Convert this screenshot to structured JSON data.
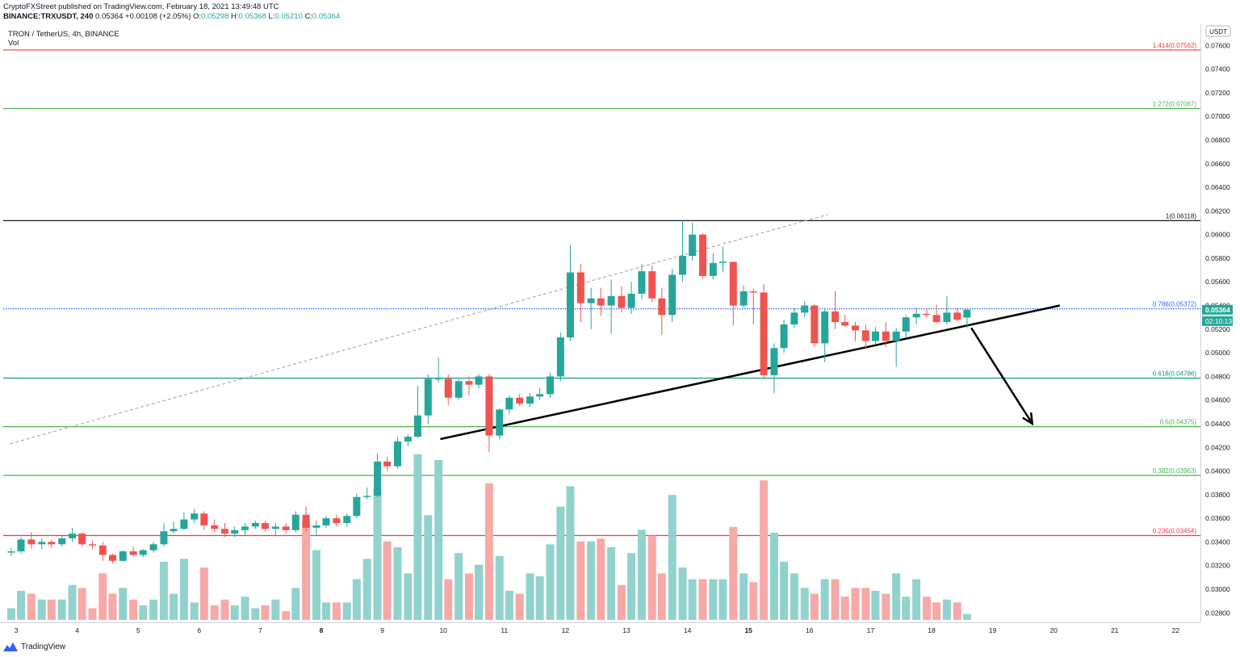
{
  "header": {
    "publisher_line": "CryptoFXStreet published on TradingView.com, February 18, 2021 13:49:48 UTC",
    "symbol": "BINANCE:TRXUSDT, 240",
    "last": "0.05364",
    "change": "+0.00108 (+2.05%)",
    "open_label": "O:",
    "open": "0.05298",
    "high_label": "H:",
    "high": "0.05368",
    "low_label": "L:",
    "low": "0.05210",
    "close_label": "C:",
    "close": "0.05364"
  },
  "legend": {
    "title": "TRON / TetherUS, 4h, BINANCE",
    "indicator": "Vol"
  },
  "footer": {
    "brand": "TradingView"
  },
  "colors": {
    "up": "#26a69a",
    "down": "#ef5350",
    "vol_up": "#92d2cc",
    "vol_down": "#f7a9a7",
    "fib_red": "#f23645",
    "fib_green": "#4caf50",
    "fib_teal": "#089981",
    "fib_black": "#131722",
    "fib_blue": "#2962ff",
    "axis_text": "#131722"
  },
  "chart_data": {
    "type": "candlestick",
    "currency_label": "USDT",
    "ylim": [
      0.0272,
      0.0778
    ],
    "yticks": [
      "0.07600",
      "0.07400",
      "0.07200",
      "0.07000",
      "0.06800",
      "0.06600",
      "0.06400",
      "0.06200",
      "0.06000",
      "0.05800",
      "0.05600",
      "0.05400",
      "0.05200",
      "0.05000",
      "0.04800",
      "0.04600",
      "0.04400",
      "0.04200",
      "0.04000",
      "0.03800",
      "0.03600",
      "0.03400",
      "0.03200",
      "0.03000",
      "0.02800"
    ],
    "x_day_labels": [
      {
        "label": "3",
        "day": 3
      },
      {
        "label": "4",
        "day": 4
      },
      {
        "label": "5",
        "day": 5
      },
      {
        "label": "6",
        "day": 6
      },
      {
        "label": "7",
        "day": 7
      },
      {
        "label": "8",
        "day": 8
      },
      {
        "label": "9",
        "day": 9
      },
      {
        "label": "10",
        "day": 10
      },
      {
        "label": "11",
        "day": 11
      },
      {
        "label": "12",
        "day": 12
      },
      {
        "label": "13",
        "day": 13
      },
      {
        "label": "14",
        "day": 14
      },
      {
        "label": "15",
        "day": 15
      },
      {
        "label": "16",
        "day": 16
      },
      {
        "label": "17",
        "day": 17
      },
      {
        "label": "18",
        "day": 18
      },
      {
        "label": "19",
        "day": 19
      },
      {
        "label": "20",
        "day": 20
      },
      {
        "label": "21",
        "day": 21
      },
      {
        "label": "22",
        "day": 22
      }
    ],
    "bold_days": [
      8,
      15
    ],
    "fib_levels": [
      {
        "label": "1.414(0.07562)",
        "price": 0.07562,
        "color": "fib_red"
      },
      {
        "label": "1.272(0.07067)",
        "price": 0.07067,
        "color": "fib_green"
      },
      {
        "label": "1(0.06118)",
        "price": 0.06118,
        "color": "fib_black"
      },
      {
        "label": "0.786(0.05372)",
        "price": 0.05372,
        "color": "fib_blue",
        "dotted": true
      },
      {
        "label": "0.618(0.04786)",
        "price": 0.04786,
        "color": "fib_teal"
      },
      {
        "label": "0.5(0.04375)",
        "price": 0.04375,
        "color": "fib_green"
      },
      {
        "label": "0.382(0.03963)",
        "price": 0.03963,
        "color": "fib_green"
      },
      {
        "label": "0.236(0.03454)",
        "price": 0.03454,
        "color": "fib_red"
      }
    ],
    "last_price_label": "0.05364",
    "last_price": 0.05364,
    "countdown_label": "02:10:13",
    "trendlines": [
      {
        "kind": "dashed",
        "from": {
          "day": 2.9,
          "price": 0.0423
        },
        "to": {
          "day": 16.3,
          "price": 0.0617
        }
      },
      {
        "kind": "solid",
        "from": {
          "day": 9.95,
          "price": 0.0427
        },
        "to": {
          "day": 20.1,
          "price": 0.054
        }
      }
    ],
    "arrow": {
      "from": {
        "day": 18.65,
        "price": 0.0521
      },
      "to": {
        "day": 19.65,
        "price": 0.044
      }
    },
    "candles": [
      {
        "day": 2.92,
        "o": 0.0331,
        "h": 0.0335,
        "l": 0.0328,
        "c": 0.0332,
        "v": 0.4
      },
      {
        "day": 3.08,
        "o": 0.0332,
        "h": 0.0344,
        "l": 0.033,
        "c": 0.0342,
        "v": 1.0
      },
      {
        "day": 3.25,
        "o": 0.0342,
        "h": 0.0348,
        "l": 0.0334,
        "c": 0.0338,
        "v": 0.9
      },
      {
        "day": 3.42,
        "o": 0.0338,
        "h": 0.0343,
        "l": 0.0334,
        "c": 0.034,
        "v": 0.7
      },
      {
        "day": 3.58,
        "o": 0.034,
        "h": 0.0342,
        "l": 0.0335,
        "c": 0.0338,
        "v": 0.7
      },
      {
        "day": 3.75,
        "o": 0.0338,
        "h": 0.0345,
        "l": 0.0336,
        "c": 0.0343,
        "v": 0.7
      },
      {
        "day": 3.92,
        "o": 0.0343,
        "h": 0.0352,
        "l": 0.034,
        "c": 0.0347,
        "v": 1.2
      },
      {
        "day": 4.08,
        "o": 0.0347,
        "h": 0.0348,
        "l": 0.0336,
        "c": 0.0338,
        "v": 1.1
      },
      {
        "day": 4.25,
        "o": 0.0338,
        "h": 0.0341,
        "l": 0.0334,
        "c": 0.0337,
        "v": 0.4
      },
      {
        "day": 4.42,
        "o": 0.0337,
        "h": 0.034,
        "l": 0.0324,
        "c": 0.0329,
        "v": 1.6
      },
      {
        "day": 4.58,
        "o": 0.0329,
        "h": 0.033,
        "l": 0.0322,
        "c": 0.0324,
        "v": 0.9
      },
      {
        "day": 4.75,
        "o": 0.0324,
        "h": 0.0333,
        "l": 0.0323,
        "c": 0.0332,
        "v": 1.1
      },
      {
        "day": 4.92,
        "o": 0.0332,
        "h": 0.0336,
        "l": 0.0328,
        "c": 0.0329,
        "v": 0.7
      },
      {
        "day": 5.08,
        "o": 0.0329,
        "h": 0.0334,
        "l": 0.0327,
        "c": 0.0333,
        "v": 0.5
      },
      {
        "day": 5.25,
        "o": 0.0333,
        "h": 0.034,
        "l": 0.0331,
        "c": 0.0338,
        "v": 0.7
      },
      {
        "day": 5.42,
        "o": 0.0338,
        "h": 0.0356,
        "l": 0.0336,
        "c": 0.0349,
        "v": 2.0
      },
      {
        "day": 5.58,
        "o": 0.0349,
        "h": 0.0357,
        "l": 0.0347,
        "c": 0.0351,
        "v": 0.9
      },
      {
        "day": 5.75,
        "o": 0.0351,
        "h": 0.0365,
        "l": 0.035,
        "c": 0.0359,
        "v": 2.1
      },
      {
        "day": 5.92,
        "o": 0.0359,
        "h": 0.0368,
        "l": 0.0356,
        "c": 0.0364,
        "v": 0.6
      },
      {
        "day": 6.08,
        "o": 0.0364,
        "h": 0.0366,
        "l": 0.035,
        "c": 0.0354,
        "v": 1.8
      },
      {
        "day": 6.25,
        "o": 0.0354,
        "h": 0.0359,
        "l": 0.0348,
        "c": 0.0351,
        "v": 0.5
      },
      {
        "day": 6.42,
        "o": 0.0351,
        "h": 0.0356,
        "l": 0.0344,
        "c": 0.0347,
        "v": 0.7
      },
      {
        "day": 6.58,
        "o": 0.0347,
        "h": 0.0353,
        "l": 0.0344,
        "c": 0.035,
        "v": 0.5
      },
      {
        "day": 6.75,
        "o": 0.035,
        "h": 0.0356,
        "l": 0.0346,
        "c": 0.0353,
        "v": 0.8
      },
      {
        "day": 6.92,
        "o": 0.0353,
        "h": 0.0358,
        "l": 0.0351,
        "c": 0.0356,
        "v": 0.4
      },
      {
        "day": 7.08,
        "o": 0.0356,
        "h": 0.0358,
        "l": 0.0349,
        "c": 0.0351,
        "v": 0.5
      },
      {
        "day": 7.25,
        "o": 0.0351,
        "h": 0.0356,
        "l": 0.0345,
        "c": 0.0353,
        "v": 0.7
      },
      {
        "day": 7.42,
        "o": 0.0353,
        "h": 0.0356,
        "l": 0.0347,
        "c": 0.035,
        "v": 0.3
      },
      {
        "day": 7.58,
        "o": 0.035,
        "h": 0.0366,
        "l": 0.0348,
        "c": 0.0363,
        "v": 1.1
      },
      {
        "day": 7.75,
        "o": 0.0363,
        "h": 0.037,
        "l": 0.0349,
        "c": 0.0352,
        "v": 3.4
      },
      {
        "day": 7.92,
        "o": 0.0352,
        "h": 0.0358,
        "l": 0.0345,
        "c": 0.0354,
        "v": 2.4
      },
      {
        "day": 8.08,
        "o": 0.0354,
        "h": 0.0362,
        "l": 0.0352,
        "c": 0.036,
        "v": 0.6
      },
      {
        "day": 8.25,
        "o": 0.036,
        "h": 0.0363,
        "l": 0.0353,
        "c": 0.0356,
        "v": 0.6
      },
      {
        "day": 8.42,
        "o": 0.0356,
        "h": 0.0364,
        "l": 0.0353,
        "c": 0.0362,
        "v": 0.6
      },
      {
        "day": 8.58,
        "o": 0.0362,
        "h": 0.0381,
        "l": 0.036,
        "c": 0.0378,
        "v": 1.4
      },
      {
        "day": 8.75,
        "o": 0.0378,
        "h": 0.0386,
        "l": 0.0376,
        "c": 0.0379,
        "v": 2.1
      },
      {
        "day": 8.92,
        "o": 0.0379,
        "h": 0.0415,
        "l": 0.0378,
        "c": 0.0408,
        "v": 4.5
      },
      {
        "day": 9.08,
        "o": 0.0408,
        "h": 0.0412,
        "l": 0.04,
        "c": 0.0404,
        "v": 2.7
      },
      {
        "day": 9.25,
        "o": 0.0404,
        "h": 0.0429,
        "l": 0.0402,
        "c": 0.0425,
        "v": 2.5
      },
      {
        "day": 9.42,
        "o": 0.0425,
        "h": 0.0431,
        "l": 0.0421,
        "c": 0.0429,
        "v": 1.6
      },
      {
        "day": 9.58,
        "o": 0.0429,
        "h": 0.0472,
        "l": 0.0428,
        "c": 0.0447,
        "v": 5.7
      },
      {
        "day": 9.75,
        "o": 0.0447,
        "h": 0.0482,
        "l": 0.044,
        "c": 0.0478,
        "v": 3.6
      },
      {
        "day": 9.92,
        "o": 0.0478,
        "h": 0.0496,
        "l": 0.0475,
        "c": 0.0478,
        "v": 5.5
      },
      {
        "day": 10.08,
        "o": 0.0478,
        "h": 0.0482,
        "l": 0.0456,
        "c": 0.0462,
        "v": 1.4
      },
      {
        "day": 10.25,
        "o": 0.0462,
        "h": 0.0478,
        "l": 0.046,
        "c": 0.0476,
        "v": 2.3
      },
      {
        "day": 10.42,
        "o": 0.0476,
        "h": 0.048,
        "l": 0.0464,
        "c": 0.0473,
        "v": 1.6
      },
      {
        "day": 10.58,
        "o": 0.0473,
        "h": 0.0482,
        "l": 0.047,
        "c": 0.048,
        "v": 1.9
      },
      {
        "day": 10.75,
        "o": 0.048,
        "h": 0.0482,
        "l": 0.0416,
        "c": 0.043,
        "v": 4.7
      },
      {
        "day": 10.92,
        "o": 0.043,
        "h": 0.0453,
        "l": 0.0427,
        "c": 0.0452,
        "v": 2.2
      },
      {
        "day": 11.08,
        "o": 0.0452,
        "h": 0.0464,
        "l": 0.0448,
        "c": 0.0462,
        "v": 1.0
      },
      {
        "day": 11.25,
        "o": 0.0462,
        "h": 0.0465,
        "l": 0.0455,
        "c": 0.0457,
        "v": 0.9
      },
      {
        "day": 11.42,
        "o": 0.0457,
        "h": 0.0466,
        "l": 0.0454,
        "c": 0.0463,
        "v": 1.6
      },
      {
        "day": 11.58,
        "o": 0.0463,
        "h": 0.047,
        "l": 0.046,
        "c": 0.0465,
        "v": 1.5
      },
      {
        "day": 11.75,
        "o": 0.0465,
        "h": 0.0483,
        "l": 0.0462,
        "c": 0.048,
        "v": 2.6
      },
      {
        "day": 11.92,
        "o": 0.048,
        "h": 0.0517,
        "l": 0.0476,
        "c": 0.0513,
        "v": 3.9
      },
      {
        "day": 12.08,
        "o": 0.0513,
        "h": 0.0591,
        "l": 0.051,
        "c": 0.0568,
        "v": 4.6
      },
      {
        "day": 12.25,
        "o": 0.0568,
        "h": 0.0575,
        "l": 0.0526,
        "c": 0.0542,
        "v": 2.7
      },
      {
        "day": 12.42,
        "o": 0.0542,
        "h": 0.0555,
        "l": 0.052,
        "c": 0.0546,
        "v": 2.7
      },
      {
        "day": 12.58,
        "o": 0.0546,
        "h": 0.0555,
        "l": 0.0531,
        "c": 0.054,
        "v": 2.8
      },
      {
        "day": 12.75,
        "o": 0.054,
        "h": 0.0562,
        "l": 0.0516,
        "c": 0.0548,
        "v": 2.5
      },
      {
        "day": 12.92,
        "o": 0.0548,
        "h": 0.0556,
        "l": 0.0534,
        "c": 0.0538,
        "v": 1.2
      },
      {
        "day": 13.08,
        "o": 0.0538,
        "h": 0.056,
        "l": 0.0533,
        "c": 0.055,
        "v": 2.3
      },
      {
        "day": 13.25,
        "o": 0.055,
        "h": 0.0575,
        "l": 0.0545,
        "c": 0.0569,
        "v": 3.1
      },
      {
        "day": 13.42,
        "o": 0.0569,
        "h": 0.0574,
        "l": 0.0543,
        "c": 0.0546,
        "v": 2.9
      },
      {
        "day": 13.58,
        "o": 0.0546,
        "h": 0.0555,
        "l": 0.0515,
        "c": 0.0532,
        "v": 1.6
      },
      {
        "day": 13.75,
        "o": 0.0532,
        "h": 0.0571,
        "l": 0.0526,
        "c": 0.0566,
        "v": 4.3
      },
      {
        "day": 13.92,
        "o": 0.0566,
        "h": 0.0612,
        "l": 0.056,
        "c": 0.0582,
        "v": 1.8
      },
      {
        "day": 14.08,
        "o": 0.0582,
        "h": 0.061,
        "l": 0.0578,
        "c": 0.06,
        "v": 1.4
      },
      {
        "day": 14.25,
        "o": 0.06,
        "h": 0.0601,
        "l": 0.0563,
        "c": 0.0565,
        "v": 1.4
      },
      {
        "day": 14.42,
        "o": 0.0565,
        "h": 0.0584,
        "l": 0.0562,
        "c": 0.0576,
        "v": 1.4
      },
      {
        "day": 14.58,
        "o": 0.0576,
        "h": 0.059,
        "l": 0.0568,
        "c": 0.0577,
        "v": 1.4
      },
      {
        "day": 14.75,
        "o": 0.0577,
        "h": 0.0577,
        "l": 0.0523,
        "c": 0.054,
        "v": 3.2
      },
      {
        "day": 14.92,
        "o": 0.054,
        "h": 0.0557,
        "l": 0.0538,
        "c": 0.0552,
        "v": 1.6
      },
      {
        "day": 15.08,
        "o": 0.0552,
        "h": 0.0554,
        "l": 0.0524,
        "c": 0.0551,
        "v": 1.3
      },
      {
        "day": 15.25,
        "o": 0.0551,
        "h": 0.0558,
        "l": 0.0479,
        "c": 0.0481,
        "v": 4.8
      },
      {
        "day": 15.42,
        "o": 0.0481,
        "h": 0.0508,
        "l": 0.0466,
        "c": 0.0504,
        "v": 3.0
      },
      {
        "day": 15.58,
        "o": 0.0504,
        "h": 0.0528,
        "l": 0.05,
        "c": 0.0524,
        "v": 2.0
      },
      {
        "day": 15.75,
        "o": 0.0524,
        "h": 0.0538,
        "l": 0.0521,
        "c": 0.0534,
        "v": 1.6
      },
      {
        "day": 15.92,
        "o": 0.0534,
        "h": 0.0544,
        "l": 0.053,
        "c": 0.054,
        "v": 1.1
      },
      {
        "day": 16.08,
        "o": 0.054,
        "h": 0.0541,
        "l": 0.0505,
        "c": 0.0508,
        "v": 0.9
      },
      {
        "day": 16.25,
        "o": 0.0508,
        "h": 0.0538,
        "l": 0.0492,
        "c": 0.0535,
        "v": 1.4
      },
      {
        "day": 16.42,
        "o": 0.0535,
        "h": 0.0552,
        "l": 0.052,
        "c": 0.0526,
        "v": 1.4
      },
      {
        "day": 16.58,
        "o": 0.0526,
        "h": 0.0532,
        "l": 0.0522,
        "c": 0.0523,
        "v": 0.8
      },
      {
        "day": 16.75,
        "o": 0.0523,
        "h": 0.0526,
        "l": 0.051,
        "c": 0.0519,
        "v": 1.1
      },
      {
        "day": 16.92,
        "o": 0.0519,
        "h": 0.0524,
        "l": 0.0503,
        "c": 0.051,
        "v": 1.1
      },
      {
        "day": 17.08,
        "o": 0.051,
        "h": 0.0522,
        "l": 0.0507,
        "c": 0.0518,
        "v": 1.0
      },
      {
        "day": 17.25,
        "o": 0.0518,
        "h": 0.0526,
        "l": 0.0505,
        "c": 0.051,
        "v": 0.9
      },
      {
        "day": 17.42,
        "o": 0.051,
        "h": 0.0521,
        "l": 0.0488,
        "c": 0.0518,
        "v": 1.6
      },
      {
        "day": 17.58,
        "o": 0.0518,
        "h": 0.0532,
        "l": 0.0513,
        "c": 0.053,
        "v": 0.8
      },
      {
        "day": 17.75,
        "o": 0.053,
        "h": 0.0538,
        "l": 0.0524,
        "c": 0.0533,
        "v": 1.4
      },
      {
        "day": 17.92,
        "o": 0.0533,
        "h": 0.0537,
        "l": 0.053,
        "c": 0.0532,
        "v": 0.8
      },
      {
        "day": 18.08,
        "o": 0.0532,
        "h": 0.0541,
        "l": 0.0525,
        "c": 0.0526,
        "v": 0.6
      },
      {
        "day": 18.25,
        "o": 0.0526,
        "h": 0.0548,
        "l": 0.0524,
        "c": 0.0534,
        "v": 0.7
      },
      {
        "day": 18.42,
        "o": 0.0534,
        "h": 0.0538,
        "l": 0.0526,
        "c": 0.0528,
        "v": 0.6
      },
      {
        "day": 18.58,
        "o": 0.05298,
        "h": 0.05368,
        "l": 0.0521,
        "c": 0.05364,
        "v": 0.2
      }
    ]
  }
}
